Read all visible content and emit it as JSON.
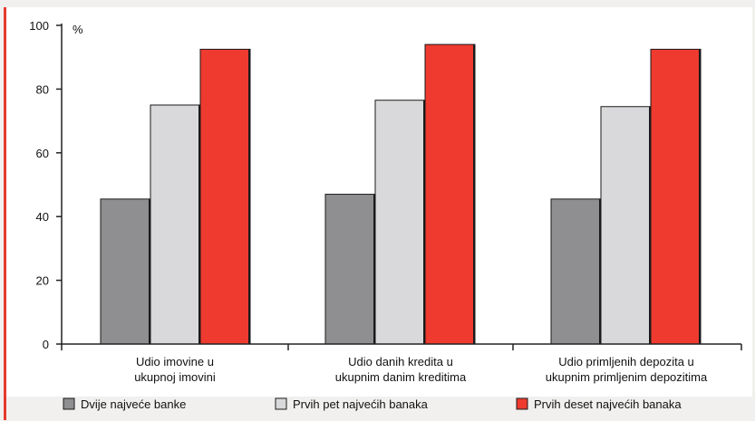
{
  "chart_data": {
    "type": "bar",
    "unit_label": "%",
    "categories": [
      [
        "Udio imovine u",
        "ukupnoj imovini"
      ],
      [
        "Udio danih kredita u",
        "ukupnim danim kreditima"
      ],
      [
        "Udio primljenih depozita u",
        "ukupnim primljenim depozitima"
      ]
    ],
    "series": [
      {
        "name": "Dvije najveće banke",
        "values": [
          45.5,
          47,
          45.5
        ],
        "color": "#8f8f91"
      },
      {
        "name": "Prvih pet najvećih banaka",
        "values": [
          75,
          76.5,
          74.5
        ],
        "color": "#d9d9db"
      },
      {
        "name": "Prvih deset najvećih banaka",
        "values": [
          92.5,
          94,
          92.5
        ],
        "color": "#ee3a2f"
      }
    ],
    "ylim": [
      0,
      100
    ],
    "yticks": [
      0,
      20,
      40,
      60,
      80,
      100
    ],
    "grid": false,
    "legend_position": "bottom"
  },
  "colors": {
    "plot_background": "#ffffff",
    "page_background": "#f2f0ee",
    "axis": "#222222",
    "left_accent": "#e53a2f"
  }
}
